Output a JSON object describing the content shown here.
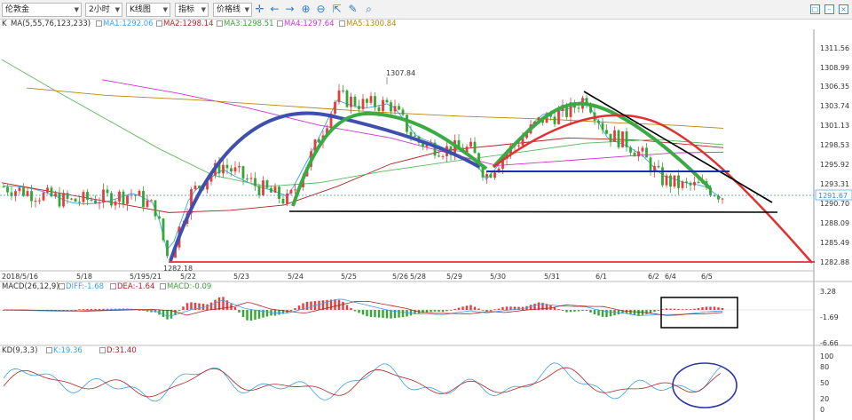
{
  "toolbar": {
    "instrument": "伦敦金",
    "period": "2小时",
    "chart_type": "K线图",
    "indicator": "指标",
    "price_line": "价格线",
    "tools": [
      "crosshair-icon",
      "arrow-left-icon",
      "arrow-right-icon",
      "zoom-in-icon",
      "zoom-out-icon",
      "chart-settings-icon",
      "pencil-icon",
      "magnifier-icon"
    ]
  },
  "ma_info": {
    "prefix": "K",
    "label": "MA(5,55,76,123,233)",
    "ma1": "MA1:1292.06",
    "ma2": "MA2:1298.14",
    "ma3": "MA3:1298.51",
    "ma4": "MA4:1297.64",
    "ma5": "MA5:1300.84"
  },
  "macd_info": {
    "label": "MACD(26,12,9)",
    "diff": "DIFF:-1.68",
    "dea": "DEA:-1.64",
    "macd": "MACD:-0.09"
  },
  "kd_info": {
    "label": "KD(9,3,3)",
    "k": "K:19.36",
    "d": "D:31.40"
  },
  "colors": {
    "up": "#e63c3c",
    "down": "#33a633",
    "ma1": "#3aa0e8",
    "ma2": "#b22222",
    "ma3": "#5cb85c",
    "ma4": "#cc33cc",
    "ma5": "#b8860b",
    "arc_blue": "#3f4fae",
    "arc_green": "#3aaa44",
    "arc_red": "#e03030",
    "line_black": "#000000",
    "line_blue": "#1a2fb0"
  },
  "chart_data": {
    "type": "candlestick",
    "y_ticks": [
      "1311.56",
      "1308.99",
      "1306.35",
      "1303.74",
      "1301.13",
      "1298.53",
      "1295.92",
      "1293.31",
      "1290.70",
      "1288.09",
      "1285.49",
      "1282.88"
    ],
    "current_price": "1291.67",
    "annotations": [
      "1307.84",
      "1282.18"
    ],
    "x_labels": [
      "2018/5/16",
      "5/18",
      "5/19",
      "5/21",
      "5/22",
      "5/23",
      "5/24",
      "5/25",
      "5/26",
      "5/28",
      "5/29",
      "5/30",
      "5/31",
      "6/1",
      "6/2",
      "6/4",
      "6/5"
    ],
    "macd_ticks": [
      "3.28",
      "-1.69",
      "-6.66"
    ],
    "kd_ticks": [
      "100",
      "80",
      "50",
      "20",
      "0"
    ]
  }
}
